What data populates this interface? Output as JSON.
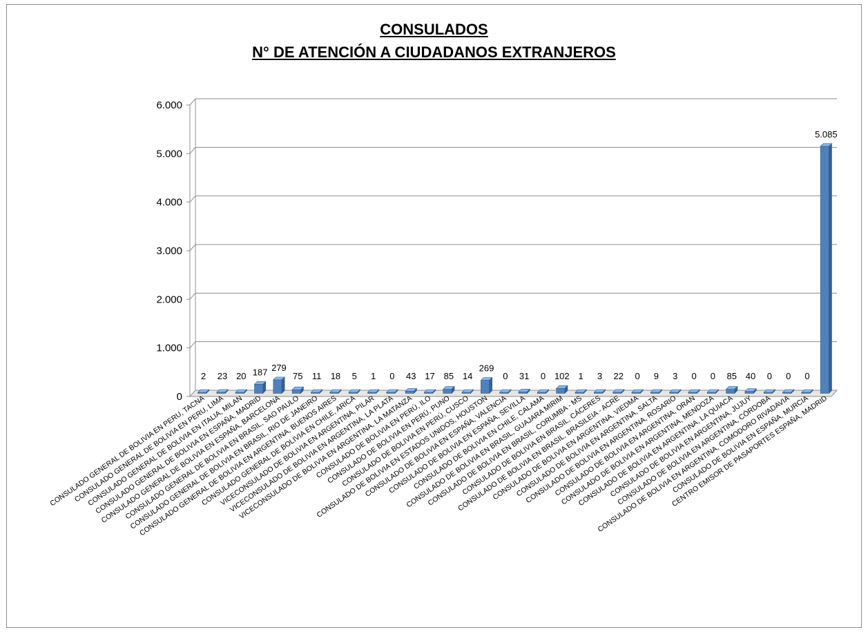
{
  "chart_data": {
    "type": "bar",
    "title": "CONSULADOS",
    "subtitle": "N° DE ATENCIÓN A CIUDADANOS EXTRANJEROS",
    "xlabel": "",
    "ylabel": "",
    "ylim": [
      0,
      6000
    ],
    "yticks": [
      "0",
      "1.000",
      "2.000",
      "3.000",
      "4.000",
      "5.000",
      "6.000"
    ],
    "grid": true,
    "legend": "none",
    "bar_color": "#4f81bd",
    "categories": [
      "CONSULADO GENERAL DE BOLIVIA EN PERU, TACNA",
      "CONSULADO GENERAL DE BOLIVIA EN PERU, LIMA",
      "CONSULADO GENERAL DE BOLIVIA EN ITALIA, MILAN",
      "CONSULADO GENERAL DE BOLIVIA EN ESPAÑA, MADRID",
      "CONSULADO GENERAL DE BOLIVIA EN ESPAÑA, BARCELONA",
      "CONSULADO GENERAL DE BOLIVIA EN BRASIL, SAO PAULO",
      "CONSULADO GENERAL DE BOLIVIA EN BRASIL, RIO DE JANEIRO",
      "CONSULADO GENERAL DE BOLIVIA EN ARGENTINA, BUENOS AIRES",
      "CONSULADO GENERAL DE BOLIVIA EN CHILE, ARICA",
      "VICECONSULADO DE BOLIVIA EN ARGENTINA, PILAR",
      "VICECONSULADO DE BOLIVIA EN ARGENTINA, LA PLATA",
      "VICECONSULADO DE BOLIVIA EN ARGENTINA, LA MATANZA",
      "CONSULADO DE BOLIVIA EN PERÚ, ILO",
      "CONSULADO DE BOLIVIA EN PERÚ, PUNO",
      "CONSULADO DE BOLIVIA EN PERÚ, CUSCO",
      "CONSULADO DE BOLIVIA EN ESTADOS UNIDOS, HOUSTON",
      "CONSULADO DE BOLIVIA EN ESPAÑA, VALENCIA",
      "CONSULADO DE BOLIVIA EN ESPAÑA, SEVILLA",
      "CONSULADO DE BOLIVIA EN CHILE, CALAMA",
      "CONSULADO DE BOLIVIA EN BRASIL, GUAJARA MIRIM",
      "CONSULADO DE BOLIVIA EN BRASIL, CORUMBA - MS",
      "CONSULADO DE BOLIVIA EN BRASIL, CÁCERES",
      "CONSULADO DE BOLIVIA EN BRASIL, BRASILEIA - ACRE",
      "CONSULADO DE BOLIVIA EN ARGENTINA, VIEDMA",
      "CONSULADO DE BOLIVIA EN ARGENTINA, SALTA",
      "CONSULADO DE BOLIVIA EN ARGENTINA, ROSARIO",
      "CONSULADO DE BOLIVIA EN ARGENTINA, ORAN",
      "CONSULADO DE BOLIVIA EN ARGENTINA, MENDOZA",
      "CONSULADO DE BOLIVIA EN ARGENTINA, LA QUIACA",
      "CONSULADO DE BOLIVIA EN ARGENTINA, JUJUY",
      "CONSULADO DE BOLIVIA EN ARGENTINA, CÓRDOBA",
      "CONSULADO DE BOLIVIA EN ARGENTINA, COMODORO RIVADAVIA",
      "CONSULADO DE BOLIVIA EN ESPAÑA, MURCIA",
      "CENTRO EMISOR DE PASAPORTES ESPAÑA, MADRID"
    ],
    "values": [
      2,
      23,
      20,
      187,
      279,
      75,
      11,
      18,
      5,
      1,
      0,
      43,
      17,
      85,
      14,
      269,
      0,
      31,
      0,
      102,
      1,
      3,
      22,
      0,
      9,
      3,
      0,
      0,
      85,
      40,
      0,
      0,
      0,
      5085
    ],
    "value_labels": [
      "2",
      "23",
      "20",
      "187",
      "279",
      "75",
      "11",
      "18",
      "5",
      "1",
      "0",
      "43",
      "17",
      "85",
      "14",
      "269",
      "0",
      "31",
      "0",
      "102",
      "1",
      "3",
      "22",
      "0",
      "9",
      "3",
      "0",
      "0",
      "85",
      "40",
      "0",
      "0",
      "0",
      "5.085"
    ]
  }
}
